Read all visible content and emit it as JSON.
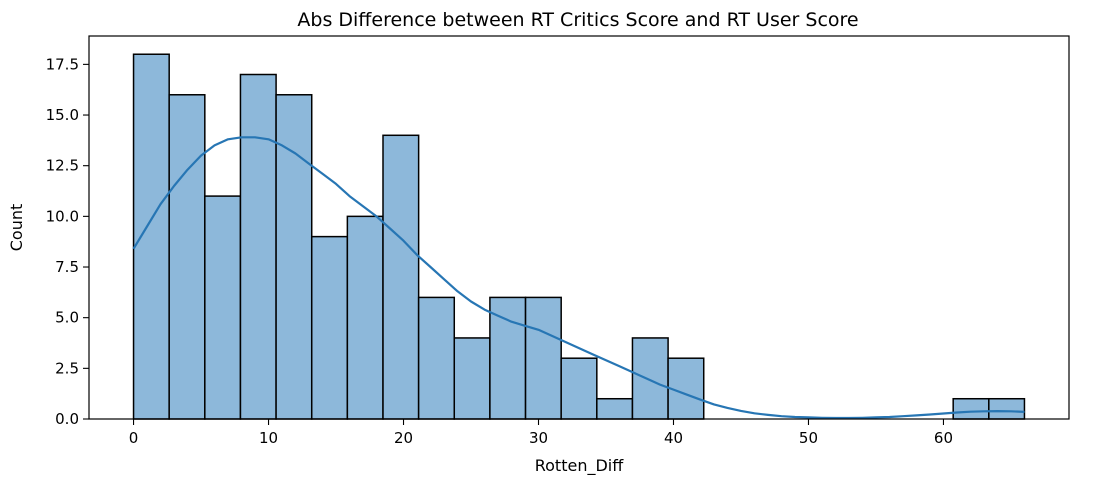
{
  "chart_data": {
    "type": "histogram",
    "title": "Abs Difference between RT Critics Score and RT User Score",
    "xlabel": "Rotten_Diff",
    "ylabel": "Count",
    "xlim": [
      -3.3,
      69.3
    ],
    "ylim": [
      0,
      18.9
    ],
    "x_ticks": [
      0,
      10,
      20,
      30,
      40,
      50,
      60
    ],
    "x_tick_labels": [
      "0",
      "10",
      "20",
      "30",
      "40",
      "50",
      "60"
    ],
    "y_ticks": [
      0,
      2.5,
      5,
      7.5,
      10,
      12.5,
      15,
      17.5
    ],
    "y_tick_labels": [
      "0.0",
      "2.5",
      "5.0",
      "7.5",
      "10.0",
      "12.5",
      "15.0",
      "17.5"
    ],
    "bin_edges": [
      0,
      2.64,
      5.28,
      7.92,
      10.56,
      13.2,
      15.84,
      18.48,
      21.12,
      23.76,
      26.4,
      29.04,
      31.68,
      34.32,
      36.96,
      39.6,
      42.24,
      44.88,
      47.52,
      50.16,
      52.8,
      55.44,
      58.08,
      60.72,
      63.36,
      66.0
    ],
    "counts": [
      18,
      16,
      11,
      17,
      16,
      9,
      10,
      14,
      6,
      4,
      6,
      6,
      3,
      1,
      4,
      3,
      0,
      0,
      0,
      0,
      0,
      0,
      0,
      1,
      1
    ],
    "kde": {
      "x": [
        0,
        1,
        2,
        3,
        4,
        5,
        6,
        7,
        8,
        9,
        10,
        11,
        12,
        13,
        14,
        15,
        16,
        17,
        18,
        19,
        20,
        21,
        22,
        23,
        24,
        25,
        26,
        27,
        28,
        29,
        30,
        31,
        32,
        33,
        34,
        35,
        36,
        37,
        38,
        39,
        40,
        41,
        42,
        43,
        44,
        45,
        46,
        47,
        48,
        49,
        50,
        51,
        52,
        53,
        54,
        55,
        56,
        57,
        58,
        59,
        60,
        61,
        62,
        63,
        64,
        65,
        66
      ],
      "y": [
        8.4,
        9.5,
        10.6,
        11.5,
        12.3,
        13.0,
        13.5,
        13.8,
        13.9,
        13.9,
        13.8,
        13.5,
        13.1,
        12.6,
        12.1,
        11.6,
        11.0,
        10.5,
        10.0,
        9.4,
        8.8,
        8.1,
        7.5,
        6.9,
        6.3,
        5.8,
        5.4,
        5.1,
        4.8,
        4.6,
        4.4,
        4.1,
        3.8,
        3.5,
        3.2,
        2.9,
        2.6,
        2.3,
        2.0,
        1.7,
        1.45,
        1.2,
        0.95,
        0.72,
        0.55,
        0.4,
        0.28,
        0.2,
        0.14,
        0.1,
        0.08,
        0.06,
        0.05,
        0.05,
        0.06,
        0.08,
        0.1,
        0.14,
        0.18,
        0.22,
        0.27,
        0.32,
        0.36,
        0.38,
        0.39,
        0.38,
        0.35
      ]
    },
    "grid": false,
    "colors": {
      "bar_fill": "#8db8da",
      "bar_edge": "#000000",
      "kde_line": "#2776b4"
    }
  }
}
